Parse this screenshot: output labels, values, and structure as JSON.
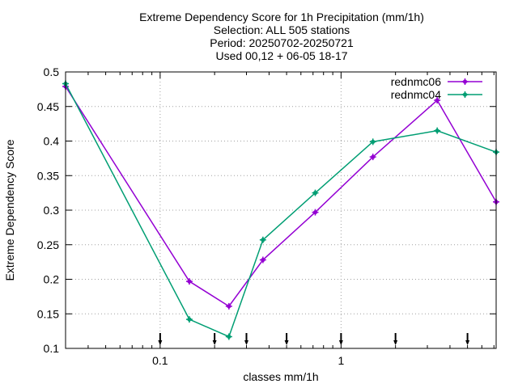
{
  "chart_data": {
    "type": "line",
    "title_lines": [
      "Extreme Dependency Score  for 1h Precipitation (mm/1h)",
      "Selection: ALL    505 stations",
      "Period: 20250702-20250721",
      "Used 00,12 + 06-05 18-17"
    ],
    "xlabel": "classes mm/1h",
    "ylabel": "Extreme Dependency Score",
    "x_scale": "log",
    "xlim": [
      0.03,
      7.2
    ],
    "ylim": [
      0.1,
      0.5
    ],
    "x_ticks": [
      {
        "value": 0.1,
        "label": "0.1"
      },
      {
        "value": 1,
        "label": "1"
      }
    ],
    "y_ticks": [
      {
        "value": 0.1,
        "label": "0.1"
      },
      {
        "value": 0.15,
        "label": "0.15"
      },
      {
        "value": 0.2,
        "label": "0.2"
      },
      {
        "value": 0.25,
        "label": "0.25"
      },
      {
        "value": 0.3,
        "label": "0.3"
      },
      {
        "value": 0.35,
        "label": "0.35"
      },
      {
        "value": 0.4,
        "label": "0.4"
      },
      {
        "value": 0.45,
        "label": "0.45"
      },
      {
        "value": 0.5,
        "label": "0.5"
      }
    ],
    "grid": true,
    "legend_position": "top-right",
    "class_markers": [
      0.1,
      0.2,
      0.3,
      0.5,
      1,
      2,
      5
    ],
    "series": [
      {
        "name": "rednmc06",
        "color": "#9400d3",
        "x": [
          0.03,
          0.145,
          0.24,
          0.37,
          0.72,
          1.5,
          3.4,
          7.2
        ],
        "values": [
          0.479,
          0.197,
          0.161,
          0.228,
          0.297,
          0.377,
          0.459,
          0.312
        ]
      },
      {
        "name": "rednmc04",
        "color": "#009e73",
        "x": [
          0.03,
          0.145,
          0.24,
          0.37,
          0.72,
          1.5,
          3.4,
          7.2
        ],
        "values": [
          0.483,
          0.142,
          0.117,
          0.257,
          0.325,
          0.399,
          0.415,
          0.384
        ]
      }
    ]
  }
}
